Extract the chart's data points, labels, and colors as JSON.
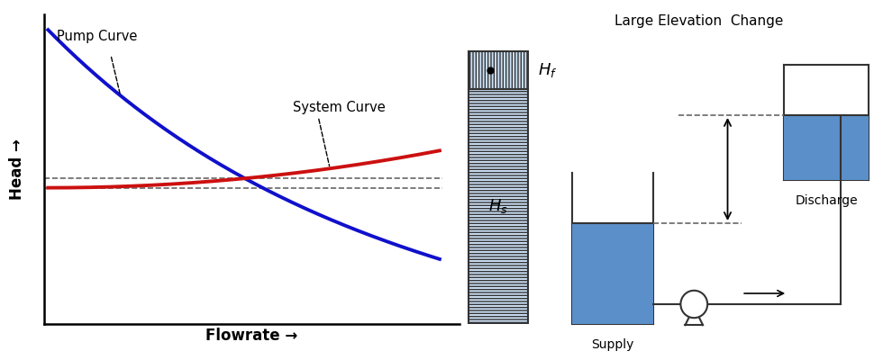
{
  "title_right": "Large Elevation  Change",
  "xlabel": "Flowrate →",
  "ylabel": "Head →",
  "pump_curve_label": "Pump Curve",
  "system_curve_label": "System Curve",
  "pump_color": "#1010cc",
  "system_color": "#cc1010",
  "bg_color": "#ffffff",
  "dashed_line_color": "#666666",
  "tank_fill_color": "#5b8fc9",
  "border_color": "#333333",
  "supply_label": "Supply",
  "discharge_label": "Discharge",
  "hf_label": "$H_f$",
  "hs_label": "$H_s$"
}
